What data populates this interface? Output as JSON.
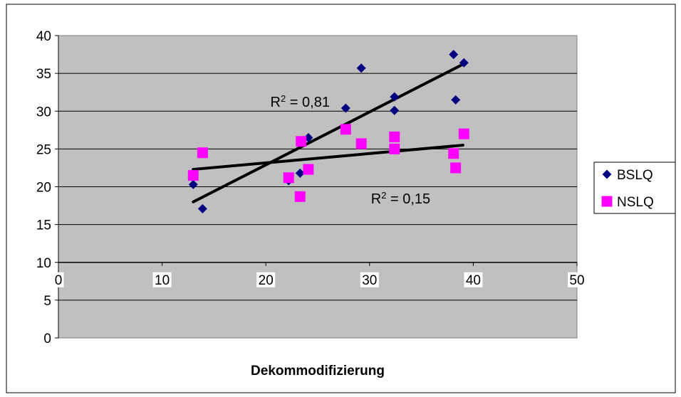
{
  "chart_data": {
    "type": "scatter",
    "xlabel": "Dekommodifizierung",
    "ylabel": "",
    "xlim": [
      0,
      50
    ],
    "ylim": [
      0,
      40
    ],
    "x_ticks": [
      "0",
      "10",
      "20",
      "30",
      "40",
      "50"
    ],
    "y_ticks": [
      "0",
      "5",
      "10",
      "15",
      "20",
      "25",
      "30",
      "35",
      "40"
    ],
    "x_axis_at_y": 10,
    "grid": "horizontal",
    "legend_position": "right",
    "colors": {
      "plot_bg": "#c0c0c0",
      "bslq": "#000080",
      "nslq": "#ff00ff",
      "trend": "#000000"
    },
    "series": [
      {
        "name": "BSLQ",
        "marker": "diamond",
        "points": [
          [
            13.0,
            20.3
          ],
          [
            13.9,
            17.1
          ],
          [
            22.2,
            20.8
          ],
          [
            23.3,
            21.8
          ],
          [
            24.1,
            26.5
          ],
          [
            27.7,
            30.4
          ],
          [
            29.2,
            35.7
          ],
          [
            32.4,
            31.9
          ],
          [
            32.4,
            30.1
          ],
          [
            38.1,
            37.5
          ],
          [
            38.3,
            31.5
          ],
          [
            39.1,
            36.4
          ]
        ],
        "trendline": {
          "from": [
            13.0,
            18.0
          ],
          "to": [
            39.0,
            36.2
          ]
        },
        "r2_label": "R² = 0,81"
      },
      {
        "name": "NSLQ",
        "marker": "square",
        "points": [
          [
            13.0,
            21.5
          ],
          [
            13.9,
            24.5
          ],
          [
            22.2,
            21.2
          ],
          [
            23.3,
            18.7
          ],
          [
            23.4,
            26.0
          ],
          [
            24.1,
            22.3
          ],
          [
            27.7,
            27.6
          ],
          [
            29.2,
            25.7
          ],
          [
            32.4,
            26.6
          ],
          [
            32.4,
            25.0
          ],
          [
            38.1,
            24.4
          ],
          [
            38.3,
            22.5
          ],
          [
            39.1,
            27.0
          ]
        ],
        "trendline": {
          "from": [
            13.0,
            22.3
          ],
          "to": [
            39.0,
            25.5
          ]
        },
        "r2_label": "R² = 0,15"
      }
    ]
  }
}
